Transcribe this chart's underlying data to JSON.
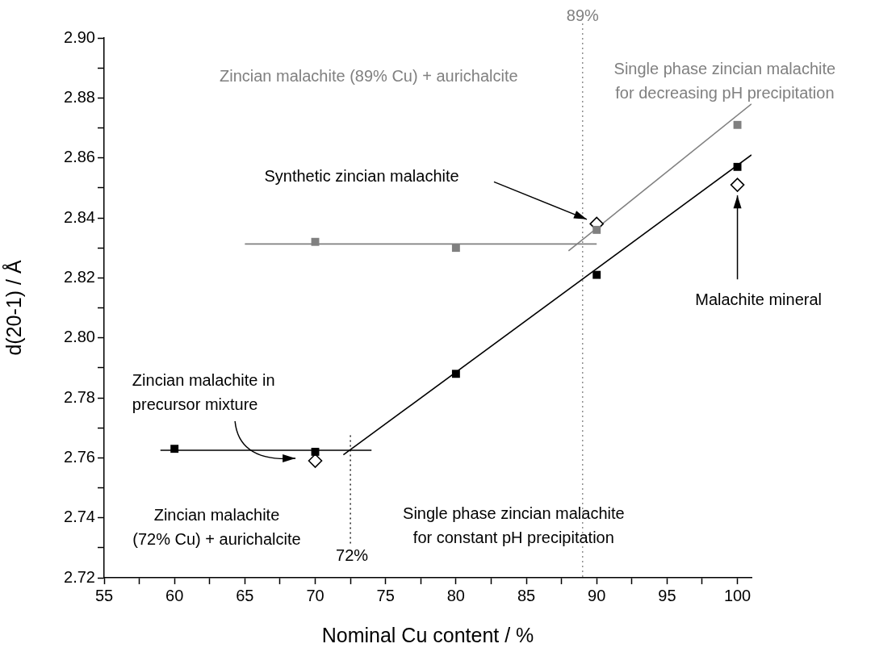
{
  "chart_data": {
    "type": "scatter",
    "xlabel": "Nominal Cu content / %",
    "ylabel": "d(20-1) / Å",
    "xlim": [
      55,
      101
    ],
    "ylim": [
      2.72,
      2.9
    ],
    "xticks": [
      55,
      {
        "value": 57.5,
        "label": null
      },
      60,
      {
        "value": 62.5,
        "label": null
      },
      65,
      {
        "value": 67.5,
        "label": null
      },
      70,
      {
        "value": 72.5,
        "label": null
      },
      75,
      {
        "value": 77.5,
        "label": null
      },
      80,
      {
        "value": 82.5,
        "label": null
      },
      85,
      {
        "value": 87.5,
        "label": null
      },
      90,
      {
        "value": 92.5,
        "label": null
      },
      95,
      {
        "value": 97.5,
        "label": null
      },
      100
    ],
    "yticks": [
      {
        "value": 2.72,
        "label": "2.72"
      },
      {
        "value": 2.73,
        "label": null
      },
      {
        "value": 2.74,
        "label": "2.74"
      },
      {
        "value": 2.75,
        "label": null
      },
      {
        "value": 2.76,
        "label": "2.76"
      },
      {
        "value": 2.77,
        "label": null
      },
      {
        "value": 2.78,
        "label": "2.78"
      },
      {
        "value": 2.79,
        "label": null
      },
      {
        "value": 2.8,
        "label": "2.80"
      },
      {
        "value": 2.81,
        "label": null
      },
      {
        "value": 2.82,
        "label": "2.82"
      },
      {
        "value": 2.83,
        "label": null
      },
      {
        "value": 2.84,
        "label": "2.84"
      },
      {
        "value": 2.85,
        "label": null
      },
      {
        "value": 2.86,
        "label": "2.86"
      },
      {
        "value": 2.87,
        "label": null
      },
      {
        "value": 2.88,
        "label": "2.88"
      },
      {
        "value": 2.89,
        "label": null
      },
      {
        "value": 2.9,
        "label": "2.90"
      }
    ],
    "grid": false,
    "legend": false,
    "series": [
      {
        "color": "#000000",
        "marker": "square",
        "x": [
          60,
          70,
          80,
          90,
          100
        ],
        "values": [
          2.763,
          2.762,
          2.788,
          2.821,
          2.857
        ]
      },
      {
        "color": "#808080",
        "marker": "square",
        "x": [
          70,
          80,
          90,
          100
        ],
        "values": [
          2.832,
          2.83,
          2.836,
          2.871
        ]
      },
      {
        "color": "#000000",
        "marker": "diamond",
        "x": [
          70,
          90,
          100
        ],
        "values": [
          2.759,
          2.838,
          2.851
        ]
      },
      {
        "type": "line",
        "color": "#000000",
        "marker": "none",
        "x": [
          59,
          74
        ],
        "values": [
          2.7625,
          2.7625
        ]
      },
      {
        "type": "line",
        "color": "#000000",
        "marker": "none",
        "x": [
          72,
          101
        ],
        "values": [
          2.761,
          2.861
        ]
      },
      {
        "type": "line",
        "color": "#808080",
        "marker": "none",
        "x": [
          65,
          90
        ],
        "values": [
          2.8313,
          2.8313
        ]
      },
      {
        "type": "line",
        "color": "#808080",
        "marker": "none",
        "x": [
          88,
          101
        ],
        "values": [
          2.829,
          2.878
        ]
      }
    ],
    "ref_lines": [
      {
        "axis": "x",
        "value": 72.5,
        "label": "72%",
        "line_style": "dotted",
        "color": "#000000"
      },
      {
        "axis": "x",
        "value": 89,
        "label": "89%",
        "line_style": "dotted",
        "color": "#808080"
      }
    ],
    "annotations": [
      "Zincian malachite (89% Cu) + aurichalcite",
      "Single phase zincian malachite\nfor decreasing pH precipitation",
      "Synthetic zincian malachite",
      "Malachite mineral",
      "Zincian malachite in\nprecursor mixture",
      "Zincian malachite\n(72% Cu) + aurichalcite",
      "Single phase zincian malachite\nfor constant pH precipitation"
    ]
  }
}
